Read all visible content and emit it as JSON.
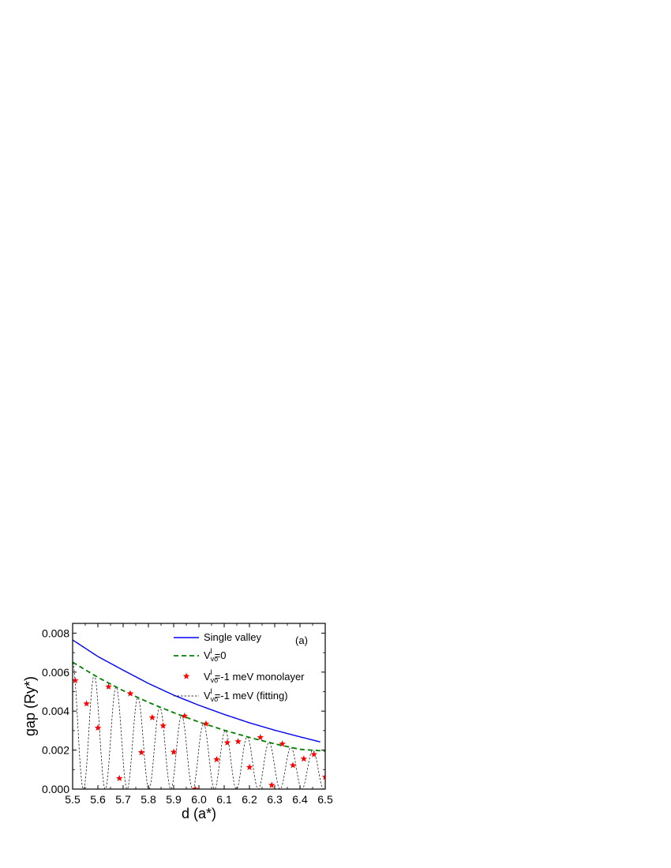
{
  "chart_data": {
    "type": "line",
    "panel_label": "(a)",
    "xlabel": "d (a*)",
    "ylabel": "gap (Ry*)",
    "xlim": [
      5.5,
      6.5
    ],
    "ylim": [
      0.0,
      0.0085
    ],
    "x_ticks": [
      "5.5",
      "5.6",
      "5.7",
      "5.8",
      "5.9",
      "6.0",
      "6.1",
      "6.2",
      "6.3",
      "6.4",
      "6.5"
    ],
    "y_ticks": [
      "0.000",
      "0.002",
      "0.004",
      "0.006",
      "0.008"
    ],
    "grid": false,
    "legend_position": "top-right",
    "series": [
      {
        "name": "Single valley",
        "style": "solid",
        "color": "#0000ff",
        "x": [
          5.5,
          5.6,
          5.7,
          5.8,
          5.9,
          6.0,
          6.1,
          6.2,
          6.3,
          6.4,
          6.48
        ],
        "y": [
          0.00765,
          0.0068,
          0.0061,
          0.00542,
          0.00482,
          0.0043,
          0.00383,
          0.0034,
          0.00302,
          0.00268,
          0.00242
        ]
      },
      {
        "name_main": "V",
        "name_sub": "vo",
        "name_sup": "I",
        "name_rest": "=0",
        "style": "dashed",
        "color": "#008000",
        "x": [
          5.5,
          5.6,
          5.7,
          5.8,
          5.9,
          6.0,
          6.1,
          6.2,
          6.3,
          6.4,
          6.5
        ],
        "y": [
          0.00651,
          0.00573,
          0.00505,
          0.00445,
          0.00392,
          0.00344,
          0.00302,
          0.00265,
          0.00232,
          0.00204,
          0.00195
        ]
      },
      {
        "name_main": "V",
        "name_sub": "vo",
        "name_sup": "I",
        "name_rest": "=-1 meV monolayer",
        "style": "markers",
        "marker": "star",
        "color": "#ff0000",
        "x": [
          5.51,
          5.555,
          5.6,
          5.642,
          5.685,
          5.728,
          5.772,
          5.815,
          5.858,
          5.9,
          5.943,
          5.985,
          6.028,
          6.07,
          6.112,
          6.155,
          6.2,
          6.243,
          6.288,
          6.33,
          6.372,
          6.415,
          6.455,
          6.5
        ],
        "y": [
          0.00557,
          0.00438,
          0.00314,
          0.00525,
          0.00055,
          0.0049,
          0.00188,
          0.00367,
          0.00325,
          0.0019,
          0.00375,
          0.0,
          0.00335,
          0.00152,
          0.00238,
          0.00244,
          0.00112,
          0.00265,
          0.0002,
          0.00232,
          0.00122,
          0.00155,
          0.00178,
          0.00062
        ]
      },
      {
        "name_main": "V",
        "name_sub": "vo",
        "name_sup": "I",
        "name_rest": "=-1 meV (fitting)",
        "style": "dashed-thin",
        "color": "#000000",
        "period": 0.0865,
        "phase": 5.586,
        "envelope_of_series": 1
      }
    ]
  }
}
